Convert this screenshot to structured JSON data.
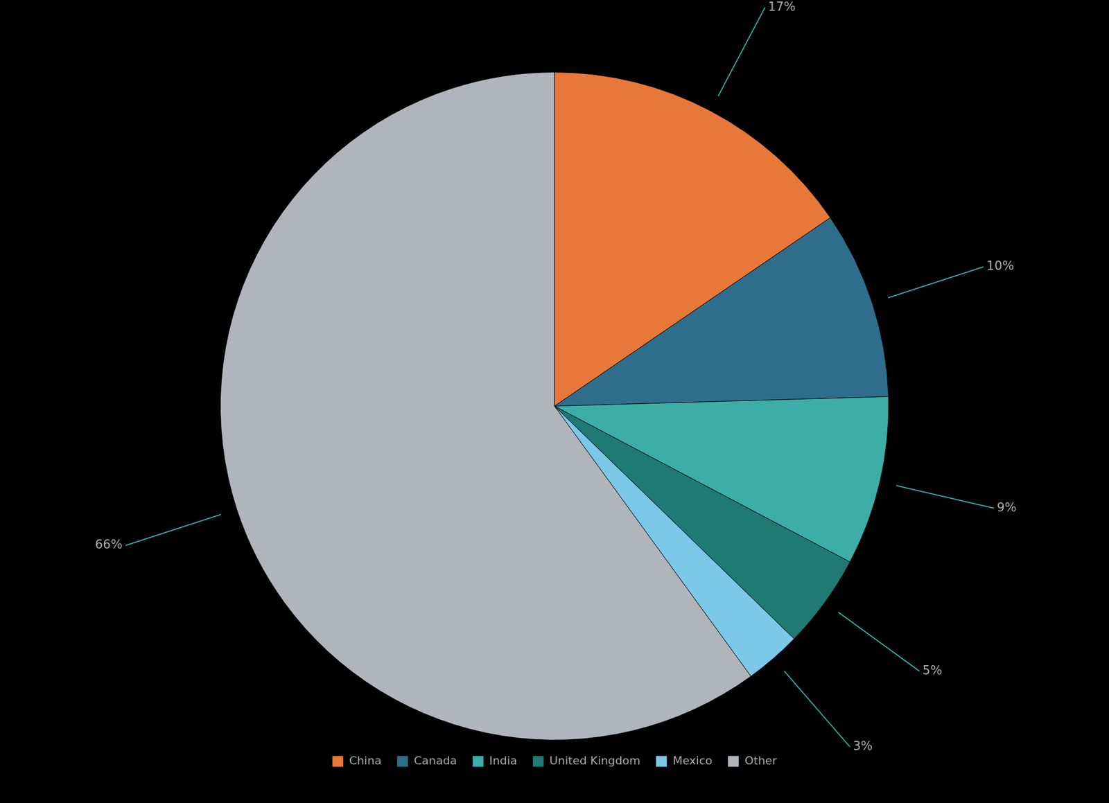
{
  "chart_data": {
    "type": "pie",
    "categories": [
      "China",
      "Canada",
      "India",
      "United Kingdom",
      "Mexico",
      "Other"
    ],
    "values": [
      17,
      10,
      9,
      5,
      3,
      66
    ],
    "value_labels": [
      "17%",
      "10%",
      "9%",
      "5%",
      "3%",
      "66%"
    ],
    "colors": [
      "#E8773A",
      "#2E6E8A",
      "#3DADA8",
      "#1E7A72",
      "#7BC8E8",
      "#B0B5BC"
    ],
    "data_labels": true,
    "legend": "bottom"
  }
}
